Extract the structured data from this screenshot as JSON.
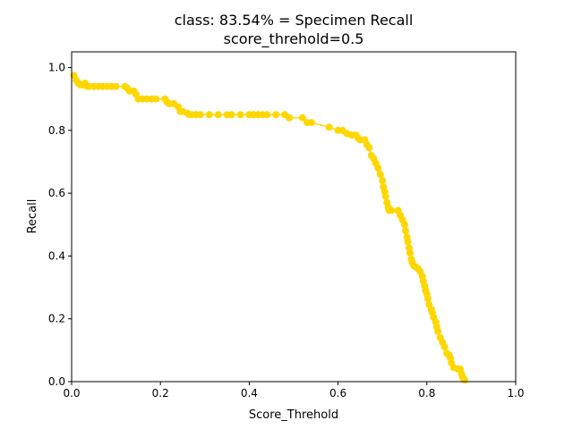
{
  "chart_data": {
    "type": "line",
    "title": "class: 83.54% = Specimen Recall",
    "subtitle": "score_threhold=0.5",
    "xlabel": "Score_Threhold",
    "ylabel": "Recall",
    "xlim": [
      0,
      1
    ],
    "ylim": [
      0,
      1.05
    ],
    "xticks": [
      "0.0",
      "0.2",
      "0.4",
      "0.6",
      "0.8",
      "1.0"
    ],
    "yticks": [
      "0.0",
      "0.2",
      "0.4",
      "0.6",
      "0.8",
      "1.0"
    ],
    "grid": false,
    "legend": "none",
    "series": [
      {
        "color": "#ffd700",
        "marker": "circle",
        "x": [
          0.005,
          0.01,
          0.015,
          0.02,
          0.025,
          0.03,
          0.035,
          0.04,
          0.05,
          0.06,
          0.07,
          0.08,
          0.09,
          0.1,
          0.12,
          0.125,
          0.13,
          0.14,
          0.145,
          0.15,
          0.16,
          0.17,
          0.18,
          0.19,
          0.21,
          0.215,
          0.22,
          0.23,
          0.24,
          0.245,
          0.25,
          0.26,
          0.265,
          0.27,
          0.28,
          0.29,
          0.31,
          0.33,
          0.35,
          0.36,
          0.38,
          0.4,
          0.41,
          0.42,
          0.43,
          0.44,
          0.46,
          0.48,
          0.49,
          0.52,
          0.53,
          0.54,
          0.58,
          0.6,
          0.61,
          0.62,
          0.63,
          0.64,
          0.645,
          0.65,
          0.66,
          0.665,
          0.67,
          0.675,
          0.68,
          0.685,
          0.69,
          0.695,
          0.7,
          0.702,
          0.705,
          0.707,
          0.71,
          0.713,
          0.715,
          0.72,
          0.735,
          0.74,
          0.745,
          0.75,
          0.752,
          0.755,
          0.757,
          0.76,
          0.762,
          0.765,
          0.767,
          0.77,
          0.775,
          0.78,
          0.785,
          0.79,
          0.792,
          0.795,
          0.797,
          0.8,
          0.802,
          0.805,
          0.81,
          0.812,
          0.815,
          0.82,
          0.822,
          0.825,
          0.83,
          0.835,
          0.84,
          0.845,
          0.85,
          0.853,
          0.855,
          0.86,
          0.87,
          0.875,
          0.878,
          0.88,
          0.882,
          0.885
        ],
        "y": [
          0.975,
          0.96,
          0.95,
          0.945,
          0.945,
          0.95,
          0.94,
          0.94,
          0.94,
          0.94,
          0.94,
          0.94,
          0.94,
          0.94,
          0.94,
          0.935,
          0.925,
          0.925,
          0.915,
          0.9,
          0.9,
          0.9,
          0.9,
          0.9,
          0.9,
          0.89,
          0.885,
          0.885,
          0.875,
          0.86,
          0.86,
          0.855,
          0.85,
          0.85,
          0.85,
          0.85,
          0.85,
          0.85,
          0.85,
          0.85,
          0.85,
          0.85,
          0.85,
          0.85,
          0.85,
          0.85,
          0.85,
          0.85,
          0.84,
          0.84,
          0.825,
          0.825,
          0.81,
          0.8,
          0.8,
          0.79,
          0.785,
          0.785,
          0.775,
          0.77,
          0.77,
          0.755,
          0.745,
          0.72,
          0.71,
          0.695,
          0.68,
          0.66,
          0.64,
          0.62,
          0.605,
          0.59,
          0.57,
          0.555,
          0.545,
          0.545,
          0.545,
          0.53,
          0.515,
          0.5,
          0.48,
          0.46,
          0.445,
          0.425,
          0.41,
          0.39,
          0.38,
          0.37,
          0.365,
          0.36,
          0.35,
          0.335,
          0.32,
          0.305,
          0.29,
          0.28,
          0.265,
          0.245,
          0.23,
          0.22,
          0.205,
          0.19,
          0.175,
          0.16,
          0.14,
          0.125,
          0.11,
          0.09,
          0.085,
          0.075,
          0.06,
          0.045,
          0.04,
          0.04,
          0.025,
          0.015,
          0.01,
          0.005
        ]
      }
    ]
  }
}
